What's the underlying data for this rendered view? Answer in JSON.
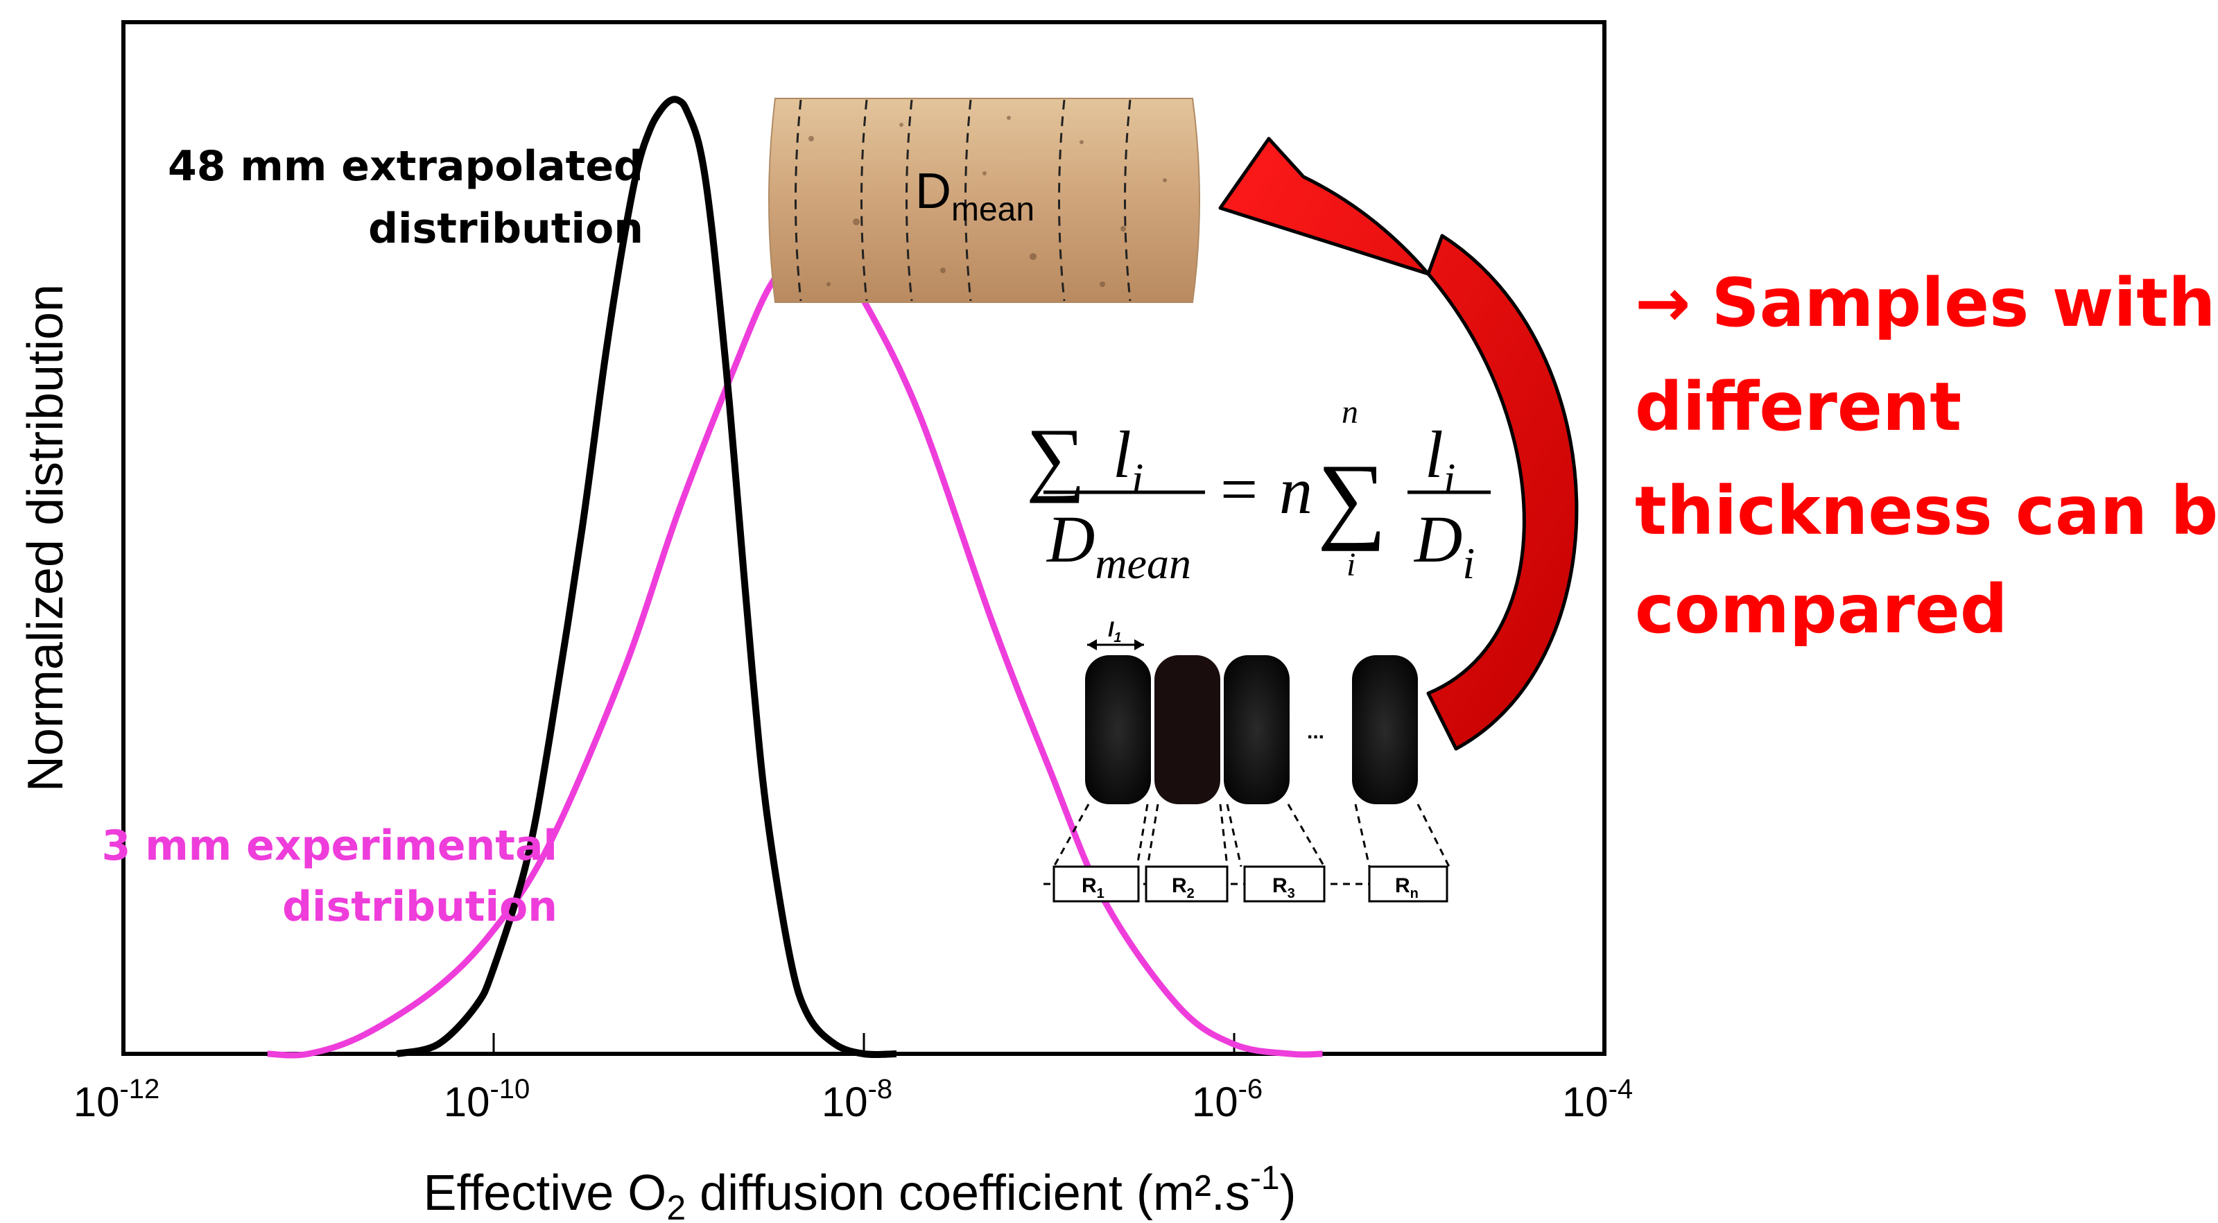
{
  "chart_data": {
    "type": "line",
    "x_scale": "log",
    "xlim": [
      1e-12,
      0.0001
    ],
    "xlabel_parts": {
      "pre": "Effective O",
      "sub": "2",
      "mid": " diffusion coefficient (m².s",
      "sup": "-1",
      "post": ")"
    },
    "ylabel": "Normalized distribution",
    "x_ticks": [
      {
        "base": "10",
        "exp": "-12",
        "value": 1e-12
      },
      {
        "base": "10",
        "exp": "-10",
        "value": 1e-10
      },
      {
        "base": "10",
        "exp": "-8",
        "value": 1e-08
      },
      {
        "base": "10",
        "exp": "-6",
        "value": 1e-06
      },
      {
        "base": "10",
        "exp": "-4",
        "value": 0.0001
      }
    ],
    "grid": false,
    "series": [
      {
        "color": "#000000",
        "x": [
          3e-11,
          5e-11,
          8e-11,
          1e-10,
          1.5e-10,
          2e-10,
          3e-10,
          4e-10,
          5e-10,
          6e-10,
          7e-10,
          8e-10,
          9e-10,
          1e-09,
          1.1e-09,
          1.3e-09,
          1.5e-09,
          1.8e-09,
          2e-09,
          2.5e-09,
          3e-09,
          4e-09,
          5e-09,
          7e-09,
          1e-08,
          1.5e-08
        ],
        "y": [
          0.0,
          0.01,
          0.05,
          0.09,
          0.2,
          0.33,
          0.55,
          0.73,
          0.85,
          0.93,
          0.97,
          0.99,
          1.0,
          1.0,
          0.99,
          0.95,
          0.87,
          0.72,
          0.62,
          0.4,
          0.25,
          0.1,
          0.04,
          0.01,
          0.0,
          0.0
        ]
      },
      {
        "color": "#ee3ddb",
        "x": [
          6e-12,
          1e-11,
          2e-11,
          5e-11,
          1e-10,
          2e-10,
          5e-10,
          1e-09,
          2e-09,
          3e-09,
          4e-09,
          5e-09,
          7e-09,
          1e-08,
          2e-08,
          5e-08,
          1e-07,
          2e-07,
          5e-07,
          1e-06,
          2e-06,
          3e-06
        ],
        "y": [
          0.0,
          0.0,
          0.02,
          0.07,
          0.13,
          0.22,
          0.4,
          0.57,
          0.72,
          0.8,
          0.83,
          0.84,
          0.83,
          0.79,
          0.67,
          0.45,
          0.3,
          0.16,
          0.05,
          0.01,
          0.0,
          0.0
        ]
      }
    ],
    "annotations": {
      "black_label": [
        "48 mm extrapolated",
        "distribution"
      ],
      "pink_label": [
        "3 mm experimental",
        "distribution"
      ]
    }
  },
  "formula": {
    "sum": "∑",
    "numerator_var": "l",
    "numerator_sub": "i",
    "denominator_var": "D",
    "denominator_sub": "mean",
    "equals": "=",
    "n": "n",
    "sum_top": "n",
    "sum_bottom": "i",
    "frac_num": "l",
    "frac_num_sub": "i",
    "frac_den": "D",
    "frac_den_sub": "i"
  },
  "cork_label": {
    "main": "D",
    "sub": "mean"
  },
  "slices": {
    "top_label": "l",
    "top_sub": "1",
    "dots": "...",
    "boxes": [
      {
        "main": "R",
        "sub": "1"
      },
      {
        "main": "R",
        "sub": "2"
      },
      {
        "main": "R",
        "sub": "3"
      },
      {
        "main": "R",
        "sub": "n"
      }
    ]
  },
  "conclusion": {
    "arrow": "→",
    "lines": [
      "Samples with",
      "different",
      "thickness can be",
      "compared"
    ]
  }
}
